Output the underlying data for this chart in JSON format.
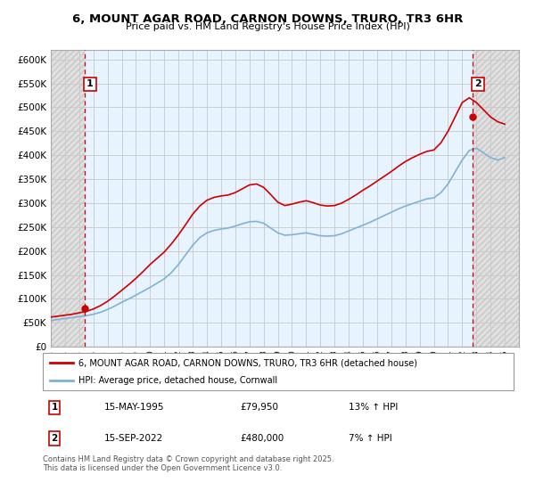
{
  "title": "6, MOUNT AGAR ROAD, CARNON DOWNS, TRURO, TR3 6HR",
  "subtitle": "Price paid vs. HM Land Registry's House Price Index (HPI)",
  "legend_label_1": "6, MOUNT AGAR ROAD, CARNON DOWNS, TRURO, TR3 6HR (detached house)",
  "legend_label_2": "HPI: Average price, detached house, Cornwall",
  "annotation_1_label": "1",
  "annotation_1_date": "15-MAY-1995",
  "annotation_1_price": "£79,950",
  "annotation_1_hpi": "13% ↑ HPI",
  "annotation_2_label": "2",
  "annotation_2_date": "15-SEP-2022",
  "annotation_2_price": "£480,000",
  "annotation_2_hpi": "7% ↑ HPI",
  "footnote": "Contains HM Land Registry data © Crown copyright and database right 2025.\nThis data is licensed under the Open Government Licence v3.0.",
  "price_color": "#cc0000",
  "hpi_color": "#7fb3d3",
  "annotation_line_color": "#cc0000",
  "ylim_min": 0,
  "ylim_max": 620000,
  "ytick_values": [
    0,
    50000,
    100000,
    150000,
    200000,
    250000,
    300000,
    350000,
    400000,
    450000,
    500000,
    550000,
    600000
  ],
  "year_start": 1993,
  "year_end": 2026,
  "sale_1_year": 1995.37,
  "sale_1_price": 79950,
  "sale_2_year": 2022.71,
  "sale_2_price": 480000,
  "hpi_years": [
    1993,
    1993.5,
    1994,
    1994.5,
    1995,
    1995.5,
    1996,
    1996.5,
    1997,
    1997.5,
    1998,
    1998.5,
    1999,
    1999.5,
    2000,
    2000.5,
    2001,
    2001.5,
    2002,
    2002.5,
    2003,
    2003.5,
    2004,
    2004.5,
    2005,
    2005.5,
    2006,
    2006.5,
    2007,
    2007.5,
    2008,
    2008.5,
    2009,
    2009.5,
    2010,
    2010.5,
    2011,
    2011.5,
    2012,
    2012.5,
    2013,
    2013.5,
    2014,
    2014.5,
    2015,
    2015.5,
    2016,
    2016.5,
    2017,
    2017.5,
    2018,
    2018.5,
    2019,
    2019.5,
    2020,
    2020.5,
    2021,
    2021.5,
    2022,
    2022.5,
    2023,
    2023.5,
    2024,
    2024.5,
    2025
  ],
  "hpi_values": [
    55000,
    57000,
    59000,
    61000,
    63000,
    65000,
    68000,
    72000,
    78000,
    85000,
    93000,
    100000,
    108000,
    116000,
    124000,
    133000,
    142000,
    155000,
    172000,
    192000,
    212000,
    228000,
    238000,
    243000,
    246000,
    248000,
    252000,
    257000,
    261000,
    262000,
    258000,
    248000,
    238000,
    233000,
    234000,
    236000,
    238000,
    235000,
    232000,
    231000,
    232000,
    236000,
    242000,
    248000,
    254000,
    260000,
    267000,
    274000,
    281000,
    288000,
    294000,
    299000,
    304000,
    309000,
    311000,
    322000,
    340000,
    365000,
    390000,
    410000,
    415000,
    405000,
    395000,
    390000,
    395000
  ],
  "price_years": [
    1995.37,
    2022.71
  ],
  "price_values": [
    79950,
    480000
  ],
  "price_line_years": [
    1993,
    1993.5,
    1994,
    1994.5,
    1995,
    1995.5,
    1996,
    1996.5,
    1997,
    1997.5,
    1998,
    1998.5,
    1999,
    1999.5,
    2000,
    2000.5,
    2001,
    2001.5,
    2002,
    2002.5,
    2003,
    2003.5,
    2004,
    2004.5,
    2005,
    2005.5,
    2006,
    2006.5,
    2007,
    2007.5,
    2008,
    2008.5,
    2009,
    2009.5,
    2010,
    2010.5,
    2011,
    2011.5,
    2012,
    2012.5,
    2013,
    2013.5,
    2014,
    2014.5,
    2015,
    2015.5,
    2016,
    2016.5,
    2017,
    2017.5,
    2018,
    2018.5,
    2019,
    2019.5,
    2020,
    2020.5,
    2021,
    2021.5,
    2022,
    2022.5,
    2023,
    2023.5,
    2024,
    2024.5,
    2025
  ],
  "price_line_values": [
    62000,
    64000,
    66000,
    68000,
    71000,
    74000,
    79000,
    86000,
    95000,
    106000,
    118000,
    130000,
    143000,
    157000,
    172000,
    185000,
    198000,
    215000,
    234000,
    255000,
    277000,
    294000,
    306000,
    312000,
    315000,
    317000,
    322000,
    330000,
    338000,
    340000,
    333000,
    318000,
    302000,
    295000,
    298000,
    302000,
    305000,
    301000,
    296000,
    294000,
    295000,
    300000,
    308000,
    317000,
    327000,
    336000,
    346000,
    356000,
    366000,
    377000,
    387000,
    395000,
    402000,
    408000,
    411000,
    426000,
    450000,
    480000,
    510000,
    520000,
    510000,
    495000,
    480000,
    470000,
    465000
  ]
}
